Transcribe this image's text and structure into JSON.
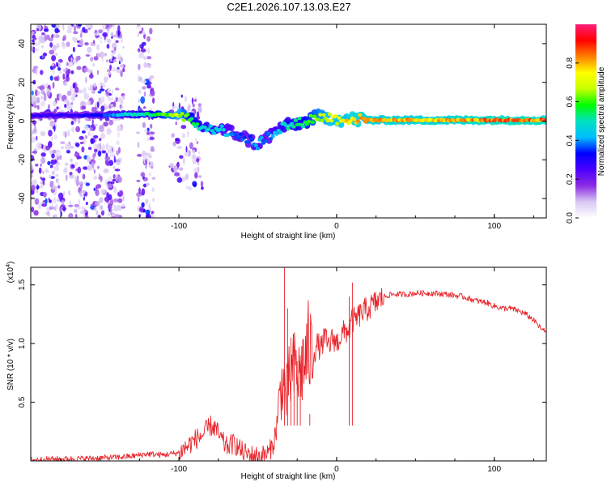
{
  "title": "C2E1.2026.107.13.03.E27",
  "colorbar": {
    "label": "Normalized spectral amplitude",
    "ticks": [
      "0.0",
      "0.2",
      "0.4",
      "0.6",
      "0.8"
    ],
    "tick_values": [
      0.0,
      0.2,
      0.4,
      0.6,
      0.8
    ],
    "range": [
      0,
      1
    ],
    "colors": [
      "#ffffff",
      "#d8c8f4",
      "#8a2be2",
      "#4b00ff",
      "#0000ff",
      "#00bfff",
      "#00e0c0",
      "#00ff00",
      "#c8ff00",
      "#ffff00",
      "#ff8000",
      "#ff0000",
      "#ff1e78"
    ]
  },
  "chart_data": [
    {
      "type": "heatmap",
      "title": "C2E1.2026.107.13.03.E27",
      "xlabel": "Height of straight line (km)",
      "ylabel": "Frequency (Hz)",
      "xlim": [
        -194,
        133
      ],
      "ylim": [
        -50,
        50
      ],
      "xticks": [
        -100,
        0,
        100
      ],
      "xtick_labels": [
        "-100",
        "0",
        "100"
      ],
      "yticks": [
        -40,
        -20,
        0,
        20,
        40
      ],
      "ytick_labels": [
        "-40",
        "-20",
        "0",
        "20",
        "40"
      ],
      "ridge": {
        "x": [
          -194,
          -170,
          -150,
          -135,
          -120,
          -100,
          -92,
          -85,
          -78,
          -70,
          -62,
          -55,
          -50,
          -45,
          -40,
          -35,
          -28,
          -20,
          -12,
          -5,
          0,
          5,
          12,
          20,
          40,
          70,
          100,
          133
        ],
        "frequency": [
          3,
          3,
          3,
          3.5,
          3.5,
          3,
          0,
          -3,
          -4,
          -5,
          -7,
          -10,
          -12,
          -9,
          -6,
          -3,
          -2,
          0,
          2,
          2,
          1,
          1,
          1,
          0.5,
          0.5,
          0.5,
          0.5,
          0.5
        ],
        "amplitude": [
          0.3,
          0.3,
          0.35,
          0.5,
          0.55,
          0.75,
          0.6,
          0.55,
          0.5,
          0.45,
          0.4,
          0.4,
          0.45,
          0.4,
          0.45,
          0.5,
          0.55,
          0.6,
          0.7,
          0.75,
          0.8,
          0.8,
          0.85,
          0.85,
          0.85,
          0.85,
          0.9,
          0.9
        ]
      }
    },
    {
      "type": "line",
      "xlabel": "Height of straight line (km)",
      "ylabel": "SNR (10 * v/v)",
      "ylabel_multiplier": "(x10",
      "ylabel_exponent": "4",
      "ylabel_multiplier_close": ")",
      "xlim": [
        -194,
        133
      ],
      "ylim": [
        0,
        1.65
      ],
      "xticks": [
        -100,
        0,
        100
      ],
      "xtick_labels": [
        "-100",
        "0",
        "100"
      ],
      "yticks": [
        0.5,
        1.0,
        1.5
      ],
      "ytick_labels": [
        "0.5",
        "1.0",
        "1.5"
      ],
      "series": [
        {
          "name": "SNR",
          "color": "#e8242a",
          "x": [
            -194,
            -180,
            -160,
            -140,
            -130,
            -120,
            -110,
            -100,
            -95,
            -90,
            -85,
            -80,
            -77,
            -74,
            -70,
            -65,
            -60,
            -55,
            -50,
            -46,
            -43,
            -40,
            -38,
            -36,
            -34,
            -32,
            -30,
            -28,
            -26,
            -24,
            -22,
            -20,
            -18,
            -15,
            -12,
            -10,
            -8,
            -5,
            -2,
            0,
            2,
            5,
            8,
            10,
            12,
            15,
            20,
            25,
            30,
            35,
            40,
            45,
            50,
            60,
            70,
            80,
            90,
            95,
            100,
            105,
            110,
            115,
            120,
            125,
            130,
            133
          ],
          "y": [
            0.01,
            0.015,
            0.02,
            0.03,
            0.04,
            0.06,
            0.05,
            0.07,
            0.12,
            0.18,
            0.22,
            0.3,
            0.28,
            0.2,
            0.12,
            0.15,
            0.08,
            0.05,
            0.04,
            0.05,
            0.07,
            0.15,
            0.3,
            0.55,
            0.7,
            0.55,
            0.7,
            0.75,
            0.8,
            0.72,
            0.8,
            0.85,
            0.95,
            0.9,
            1.0,
            0.95,
            1.05,
            0.98,
            1.05,
            1.0,
            1.05,
            1.1,
            1.12,
            1.2,
            1.2,
            1.25,
            1.3,
            1.35,
            1.4,
            1.42,
            1.42,
            1.42,
            1.43,
            1.43,
            1.42,
            1.4,
            1.36,
            1.35,
            1.32,
            1.3,
            1.3,
            1.28,
            1.25,
            1.2,
            1.12,
            1.1
          ],
          "spikes": {
            "x": [
              -33,
              -31,
              -29,
              -27,
              -25,
              -23,
              -17,
              8,
              10
            ],
            "y": [
              1.65,
              1.3,
              1.05,
              0.95,
              0.85,
              0.9,
              0.4,
              1.4,
              1.52
            ]
          }
        }
      ]
    }
  ]
}
